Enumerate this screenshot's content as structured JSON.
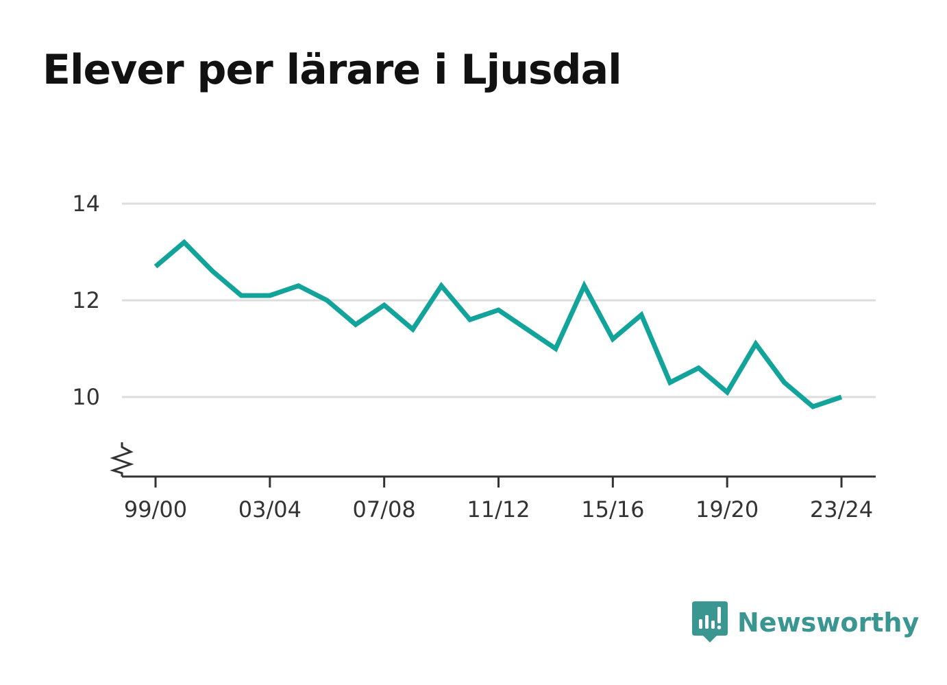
{
  "title": "Elever per lärare i Ljusdal",
  "brand": {
    "name": "Newsworthy",
    "color": "#3a9690",
    "icon": "bar-chart-speech-bubble-icon"
  },
  "colors": {
    "line": "#12a39a",
    "grid": "#dddddd",
    "axis": "#333333"
  },
  "chart_data": {
    "type": "line",
    "title": "Elever per lärare i Ljusdal",
    "xlabel": "",
    "ylabel": "",
    "categories": [
      "99/00",
      "00/01",
      "01/02",
      "02/03",
      "03/04",
      "04/05",
      "05/06",
      "06/07",
      "07/08",
      "08/09",
      "09/10",
      "10/11",
      "11/12",
      "12/13",
      "13/14",
      "14/15",
      "15/16",
      "16/17",
      "17/18",
      "18/19",
      "19/20",
      "20/21",
      "21/22",
      "22/23",
      "23/24"
    ],
    "series": [
      {
        "name": "",
        "values": [
          12.7,
          13.2,
          12.6,
          12.1,
          12.1,
          12.3,
          12.0,
          11.5,
          11.9,
          11.4,
          12.3,
          11.6,
          11.8,
          11.4,
          11.0,
          12.3,
          11.2,
          11.7,
          10.3,
          10.6,
          10.1,
          11.1,
          10.3,
          9.8,
          10.0
        ]
      }
    ],
    "ylim": [
      8.35,
      14
    ],
    "yticks": [
      10,
      12,
      14
    ],
    "xtick_labels": [
      "99/00",
      "03/04",
      "07/08",
      "11/12",
      "15/16",
      "19/20",
      "23/24"
    ],
    "grid": true,
    "axis_break": true,
    "legend": "none"
  }
}
